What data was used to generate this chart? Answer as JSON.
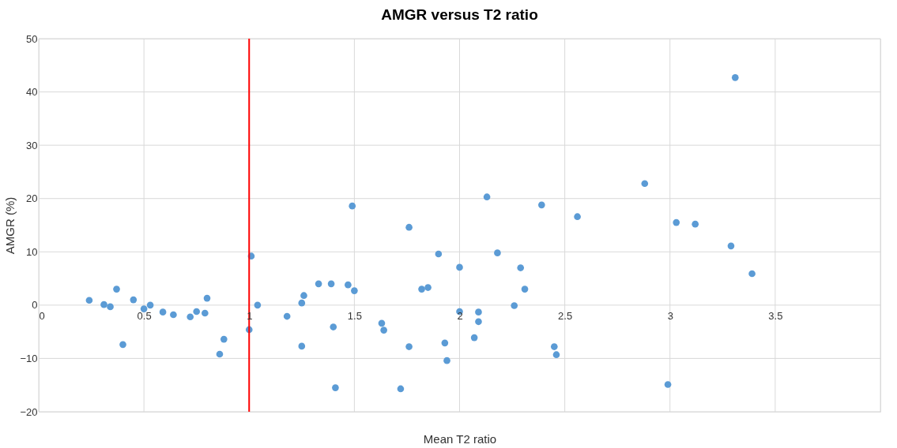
{
  "chart_data": {
    "type": "scatter",
    "title": "AMGR versus T2 ratio",
    "xlabel": "Mean T2 ratio",
    "ylabel": "AMGR (%)",
    "x": [
      0.24,
      0.31,
      0.34,
      0.37,
      0.4,
      0.45,
      0.5,
      0.53,
      0.59,
      0.64,
      0.72,
      0.75,
      0.79,
      0.8,
      0.88,
      0.86,
      1.0,
      1.01,
      1.04,
      1.18,
      1.25,
      1.25,
      1.26,
      1.33,
      1.39,
      1.4,
      1.41,
      1.47,
      1.5,
      1.49,
      1.63,
      1.64,
      1.72,
      1.76,
      1.76,
      1.82,
      1.85,
      1.9,
      1.93,
      1.94,
      2.0,
      2.0,
      2.07,
      2.09,
      2.09,
      2.13,
      2.18,
      2.26,
      2.29,
      2.31,
      2.39,
      2.45,
      2.46,
      2.56,
      2.88,
      2.99,
      3.03,
      3.12,
      3.29,
      3.31,
      3.39
    ],
    "series": [
      {
        "color": "#5b9bd5",
        "values": [
          0.9,
          0.1,
          -0.3,
          3.0,
          -7.4,
          1.0,
          -0.7,
          0.0,
          -1.3,
          -1.8,
          -2.2,
          -1.2,
          -1.5,
          1.3,
          -6.4,
          -9.2,
          -4.6,
          9.2,
          0.0,
          -2.1,
          0.4,
          -7.7,
          1.8,
          4.0,
          4.0,
          -4.1,
          -15.5,
          3.8,
          2.7,
          18.6,
          -3.4,
          -4.7,
          -15.7,
          14.6,
          -7.8,
          3.0,
          3.3,
          9.6,
          -7.1,
          -10.4,
          7.1,
          -1.2,
          -6.1,
          -1.3,
          -3.1,
          20.3,
          9.8,
          -0.1,
          7.0,
          3.0,
          18.8,
          -7.8,
          -9.3,
          16.6,
          22.8,
          -14.9,
          15.5,
          15.2,
          11.1,
          42.7,
          5.9
        ]
      }
    ],
    "xlim": [
      0,
      4
    ],
    "xticks": [
      0,
      0.5,
      1,
      1.5,
      2,
      2.5,
      3,
      3.5,
      {
        "value": 4,
        "label": null
      }
    ],
    "ylim": [
      -20,
      50
    ],
    "yticks": [
      -20,
      -10,
      0,
      10,
      20,
      30,
      40,
      50
    ],
    "ref_lines": [
      {
        "axis": "x",
        "value": 1,
        "color": "#ff0000",
        "line_style": "solid"
      }
    ],
    "grid": true,
    "marker": "circle",
    "legend": false
  }
}
